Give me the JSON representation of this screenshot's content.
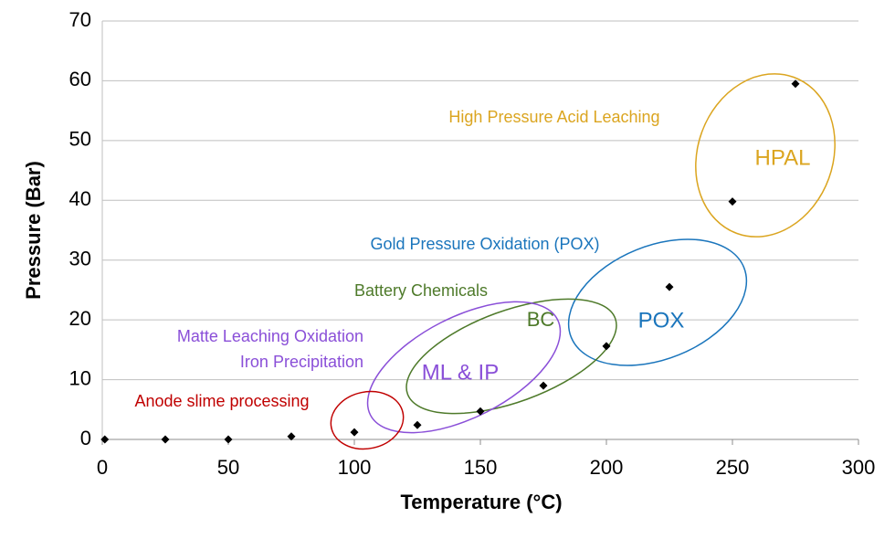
{
  "chart_data": {
    "type": "scatter",
    "x_label": "Temperature (°C)",
    "y_label": "Pressure (Bar)",
    "x": [
      1,
      25,
      50,
      75,
      100,
      125,
      150,
      175,
      200,
      225,
      250,
      275
    ],
    "y": [
      0,
      0,
      0,
      0.5,
      1.2,
      2.4,
      4.7,
      9,
      15.6,
      25.5,
      39.8,
      59.5
    ],
    "color": "#000000",
    "xlim": [
      0,
      300
    ],
    "xticks": [
      0,
      50,
      100,
      150,
      200,
      250,
      300
    ],
    "ylim": [
      0,
      70
    ],
    "yticks": [
      0,
      10,
      20,
      30,
      40,
      50,
      60,
      70
    ],
    "grid": true,
    "groups": [
      {
        "label": "HPAL",
        "note": [
          "High Pressure Acid Leaching"
        ],
        "color": "#dba520"
      },
      {
        "label": "POX",
        "note": [
          "Gold Pressure Oxidation (POX)"
        ],
        "color": "#1a75bc"
      },
      {
        "label": "BC",
        "note": [
          "Battery Chemicals"
        ],
        "color": "#4e7a2a"
      },
      {
        "label": "ML & IP",
        "note": [
          "Matte Leaching Oxidation",
          "Iron Precipitation"
        ],
        "color": "#8a4fd8"
      },
      {
        "note": [
          "Anode slime processing"
        ],
        "color": "#c00000"
      }
    ]
  }
}
